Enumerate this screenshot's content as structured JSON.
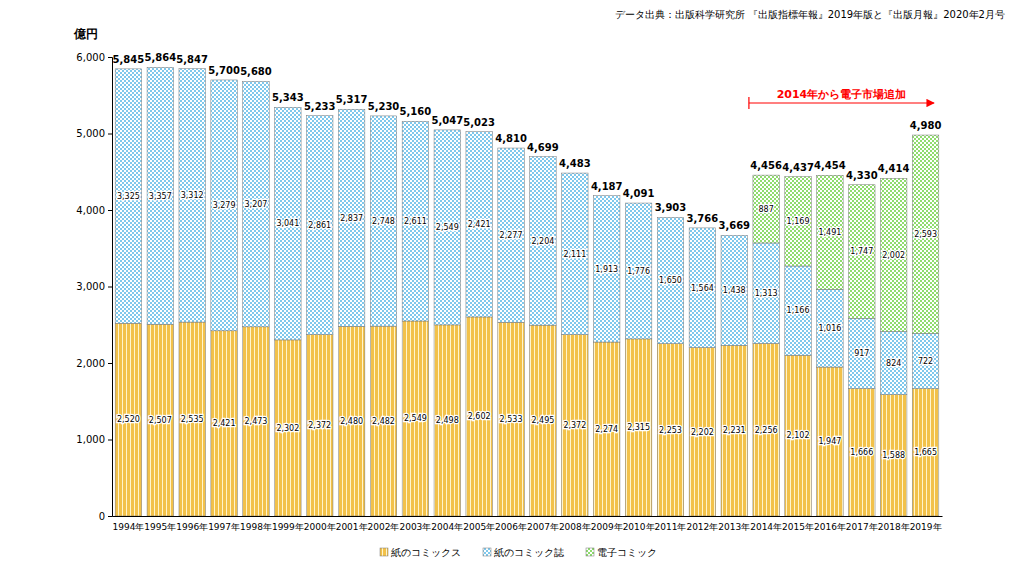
{
  "chart_data": {
    "type": "bar",
    "stacked": true,
    "data_labels": true,
    "grid": false,
    "legend": "bottom",
    "source": "データ出典：出版科学研究所 『出版指標年報』2019年版と『出版月報』2020年2月号",
    "y_label": "億円",
    "annotations": [
      {
        "text": "2014年から電子市場追加"
      }
    ],
    "categories": [
      "1994年",
      "1995年",
      "1996年",
      "1997年",
      "1998年",
      "1999年",
      "2000年",
      "2001年",
      "2002年",
      "2003年",
      "2004年",
      "2005年",
      "2006年",
      "2007年",
      "2008年",
      "2009年",
      "2010年",
      "2011年",
      "2012年",
      "2013年",
      "2014年",
      "2015年",
      "2016年",
      "2017年",
      "2018年",
      "2019年"
    ],
    "series": [
      {
        "name": "紙のコミックス",
        "color": "#f2c14a",
        "values": [
          2520,
          2507,
          2535,
          2421,
          2473,
          2302,
          2372,
          2480,
          2482,
          2549,
          2498,
          2602,
          2533,
          2495,
          2372,
          2274,
          2315,
          2253,
          2202,
          2231,
          2256,
          2102,
          1947,
          1666,
          1588,
          1665
        ]
      },
      {
        "name": "紙のコミック誌",
        "color": "#7fc8ec",
        "values": [
          3325,
          3357,
          3312,
          3279,
          3207,
          3041,
          2861,
          2837,
          2748,
          2611,
          2549,
          2421,
          2277,
          2204,
          2111,
          1913,
          1776,
          1650,
          1564,
          1438,
          1313,
          1166,
          1016,
          917,
          824,
          722
        ]
      },
      {
        "name": "電子コミック",
        "color": "#8fdc6e",
        "values": [
          null,
          null,
          null,
          null,
          null,
          null,
          null,
          null,
          null,
          null,
          null,
          null,
          null,
          null,
          null,
          null,
          null,
          null,
          null,
          null,
          887,
          1169,
          1491,
          1747,
          2002,
          2593
        ]
      }
    ],
    "totals": [
      5845,
      5864,
      5847,
      5700,
      5680,
      5343,
      5233,
      5317,
      5230,
      5160,
      5047,
      5023,
      4810,
      4699,
      4483,
      4187,
      4091,
      3903,
      3766,
      3669,
      4456,
      4437,
      4454,
      4330,
      4414,
      4980
    ],
    "ylim": [
      0,
      6000
    ],
    "yticks": [
      0,
      {
        "value": 1000,
        "label": "1,000"
      },
      {
        "value": 2000,
        "label": "2,000"
      },
      {
        "value": 3000,
        "label": "3,000"
      },
      {
        "value": 4000,
        "label": "4,000"
      },
      {
        "value": 5000,
        "label": "5,000"
      },
      {
        "value": 6000,
        "label": "6,000"
      }
    ]
  }
}
